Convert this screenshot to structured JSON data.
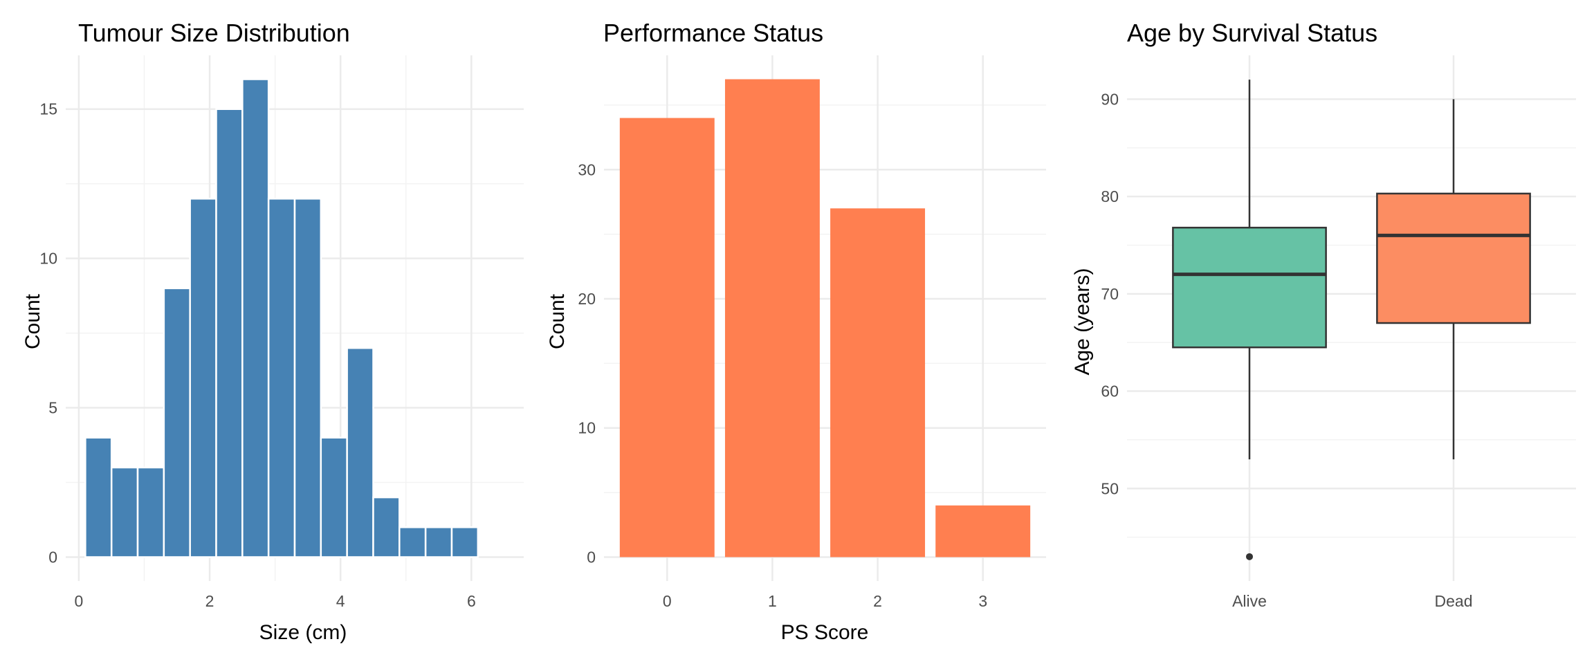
{
  "chart_data": [
    {
      "type": "bar",
      "subtype": "histogram",
      "title": "Tumour Size Distribution",
      "xlabel": "Size (cm)",
      "ylabel": "Count",
      "color": "#4682B4",
      "xlim": [
        -0.2,
        6.8
      ],
      "ylim": [
        -0.8,
        16.8
      ],
      "x_ticks": [
        0,
        2,
        4,
        6
      ],
      "y_ticks": [
        0,
        5,
        10,
        15
      ],
      "bins": [
        {
          "x0": 0.1,
          "x1": 0.5,
          "count": 4
        },
        {
          "x0": 0.5,
          "x1": 0.9,
          "count": 3
        },
        {
          "x0": 0.9,
          "x1": 1.3,
          "count": 3
        },
        {
          "x0": 1.3,
          "x1": 1.7,
          "count": 9
        },
        {
          "x0": 1.7,
          "x1": 2.1,
          "count": 12
        },
        {
          "x0": 2.1,
          "x1": 2.5,
          "count": 15
        },
        {
          "x0": 2.5,
          "x1": 2.9,
          "count": 16
        },
        {
          "x0": 2.9,
          "x1": 3.3,
          "count": 12
        },
        {
          "x0": 3.3,
          "x1": 3.7,
          "count": 12
        },
        {
          "x0": 3.7,
          "x1": 4.1,
          "count": 4
        },
        {
          "x0": 4.1,
          "x1": 4.5,
          "count": 7
        },
        {
          "x0": 4.5,
          "x1": 4.9,
          "count": 2
        },
        {
          "x0": 4.9,
          "x1": 5.3,
          "count": 1
        },
        {
          "x0": 5.3,
          "x1": 5.7,
          "count": 1
        },
        {
          "x0": 5.7,
          "x1": 6.1,
          "count": 1
        }
      ],
      "grid": true
    },
    {
      "type": "bar",
      "title": "Performance Status",
      "xlabel": "PS Score",
      "ylabel": "Count",
      "color": "#FF7F50",
      "categories": [
        "0",
        "1",
        "2",
        "3"
      ],
      "values": [
        34,
        37,
        27,
        4
      ],
      "ylim": [
        -1.85,
        38.85
      ],
      "y_ticks": [
        0,
        10,
        20,
        30
      ],
      "grid": true
    },
    {
      "type": "box",
      "title": "Age by Survival Status",
      "xlabel": "",
      "ylabel": "Age (years)",
      "categories": [
        "Alive",
        "Dead"
      ],
      "ylim": [
        40.5,
        94.5
      ],
      "y_ticks": [
        50,
        60,
        70,
        80,
        90
      ],
      "boxes": [
        {
          "name": "Alive",
          "color": "#66C2A5",
          "whisker_low": 53,
          "q1": 64.5,
          "median": 72,
          "q3": 76.8,
          "whisker_high": 92,
          "outliers": [
            43
          ]
        },
        {
          "name": "Dead",
          "color": "#FC8D62",
          "whisker_low": 53,
          "q1": 67,
          "median": 76,
          "q3": 80.3,
          "whisker_high": 90,
          "outliers": []
        }
      ],
      "grid": true
    }
  ]
}
